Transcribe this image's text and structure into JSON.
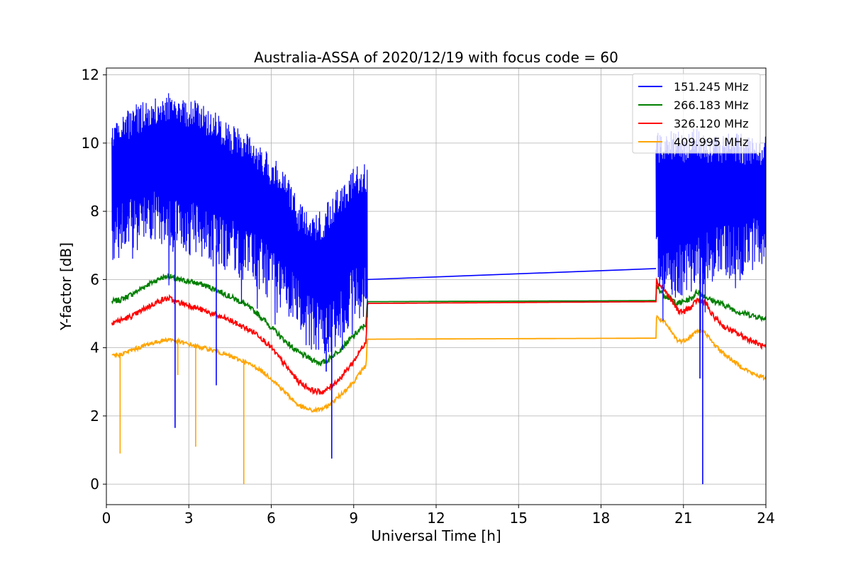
{
  "chart_data": {
    "type": "line",
    "title": "Australia-ASSA of 2020/12/19 with focus code = 60",
    "xlabel": "Universal Time [h]",
    "ylabel": "Y-factor [dB]",
    "xlim": [
      0,
      24
    ],
    "ylim": [
      -0.6,
      12.2
    ],
    "xticks": [
      0,
      3,
      6,
      9,
      12,
      15,
      18,
      21,
      24
    ],
    "yticks": [
      0,
      2,
      4,
      6,
      8,
      10,
      12
    ],
    "grid": true,
    "legend_position": "top-right",
    "series": [
      {
        "name": "151.245 MHz",
        "color": "#0000ff",
        "band": {
          "x": [
            0.2,
            1.0,
            2.0,
            2.5,
            3.5,
            4.5,
            5.5,
            6.5,
            7.0,
            7.5,
            8.0,
            8.5,
            9.0,
            9.5,
            20.0,
            20.5,
            21.0,
            21.5,
            22.0,
            22.5,
            23.0,
            23.5,
            24.0
          ],
          "low": [
            7.0,
            7.5,
            7.6,
            7.4,
            7.2,
            6.8,
            6.3,
            5.5,
            5.0,
            4.5,
            4.3,
            4.6,
            5.4,
            5.5,
            6.4,
            6.1,
            6.0,
            6.3,
            6.5,
            6.6,
            6.6,
            6.8,
            7.0
          ],
          "high": [
            10.7,
            11.1,
            11.5,
            11.5,
            11.2,
            10.6,
            10.1,
            9.2,
            8.3,
            7.8,
            8.2,
            8.8,
            9.3,
            9.4,
            10.3,
            10.4,
            10.3,
            10.5,
            10.2,
            10.3,
            10.3,
            10.2,
            10.2
          ]
        },
        "gap_line": {
          "x": [
            9.5,
            20.0
          ],
          "y": [
            6.0,
            6.32
          ]
        },
        "spikes": [
          {
            "x": 2.5,
            "y": 1.65
          },
          {
            "x": 8.2,
            "y": 0.75
          },
          {
            "x": 4.0,
            "y": 2.9
          },
          {
            "x": 8.0,
            "y": 3.3
          },
          {
            "x": 21.7,
            "y": 0.0
          },
          {
            "x": 21.6,
            "y": 3.1
          }
        ]
      },
      {
        "name": "266.183 MHz",
        "color": "#008000",
        "x": [
          0.2,
          0.5,
          1.0,
          1.5,
          2.0,
          2.3,
          2.5,
          3.0,
          3.5,
          4.0,
          4.5,
          5.0,
          5.5,
          6.0,
          6.5,
          7.0,
          7.5,
          7.8,
          8.0,
          8.5,
          9.0,
          9.45,
          9.5,
          20.0,
          20.02,
          20.3,
          20.8,
          21.0,
          21.3,
          21.5,
          21.8,
          22.0,
          22.5,
          23.0,
          23.5,
          24.0
        ],
        "y": [
          5.35,
          5.4,
          5.6,
          5.85,
          6.05,
          6.1,
          6.0,
          5.95,
          5.85,
          5.7,
          5.5,
          5.3,
          5.0,
          4.6,
          4.2,
          3.85,
          3.65,
          3.55,
          3.6,
          3.95,
          4.35,
          4.7,
          5.35,
          5.38,
          5.8,
          5.55,
          5.3,
          5.35,
          5.45,
          5.65,
          5.5,
          5.4,
          5.25,
          5.05,
          4.95,
          4.85
        ],
        "noise": 0.08
      },
      {
        "name": "326.120 MHz",
        "color": "#ff0000",
        "x": [
          0.2,
          0.5,
          1.0,
          1.5,
          2.0,
          2.3,
          2.5,
          3.0,
          3.5,
          4.0,
          4.5,
          5.0,
          5.5,
          6.0,
          6.5,
          7.0,
          7.5,
          7.8,
          8.0,
          8.5,
          9.0,
          9.45,
          9.5,
          20.0,
          20.02,
          20.3,
          20.8,
          21.0,
          21.3,
          21.5,
          21.8,
          22.0,
          22.5,
          23.0,
          23.5,
          24.0
        ],
        "y": [
          4.75,
          4.8,
          4.95,
          5.2,
          5.4,
          5.45,
          5.35,
          5.25,
          5.1,
          4.95,
          4.8,
          4.6,
          4.4,
          4.0,
          3.5,
          3.0,
          2.75,
          2.7,
          2.75,
          3.1,
          3.6,
          4.2,
          5.3,
          5.35,
          5.95,
          5.7,
          5.1,
          5.05,
          5.2,
          5.4,
          5.35,
          5.0,
          4.6,
          4.4,
          4.2,
          4.0
        ],
        "noise": 0.08
      },
      {
        "name": "409.995 MHz",
        "color": "#ffa500",
        "x": [
          0.2,
          0.5,
          1.0,
          1.5,
          2.0,
          2.3,
          2.5,
          3.0,
          3.5,
          4.0,
          4.5,
          5.0,
          5.5,
          6.0,
          6.5,
          7.0,
          7.5,
          7.8,
          8.0,
          8.5,
          9.0,
          9.45,
          9.5,
          20.0,
          20.02,
          20.3,
          20.8,
          21.0,
          21.3,
          21.5,
          21.8,
          22.0,
          22.5,
          23.0,
          23.5,
          24.0
        ],
        "y": [
          3.75,
          3.8,
          3.95,
          4.1,
          4.2,
          4.25,
          4.2,
          4.1,
          4.0,
          3.9,
          3.75,
          3.6,
          3.4,
          3.1,
          2.7,
          2.3,
          2.15,
          2.2,
          2.25,
          2.6,
          3.0,
          3.5,
          4.25,
          4.28,
          4.9,
          4.75,
          4.2,
          4.2,
          4.35,
          4.5,
          4.45,
          4.2,
          3.8,
          3.5,
          3.25,
          3.1
        ],
        "noise": 0.06,
        "spikes": [
          {
            "x": 0.5,
            "y": 0.9
          },
          {
            "x": 3.25,
            "y": 1.1
          },
          {
            "x": 5.0,
            "y": 0.0
          },
          {
            "x": 2.6,
            "y": 3.2
          }
        ]
      }
    ]
  }
}
